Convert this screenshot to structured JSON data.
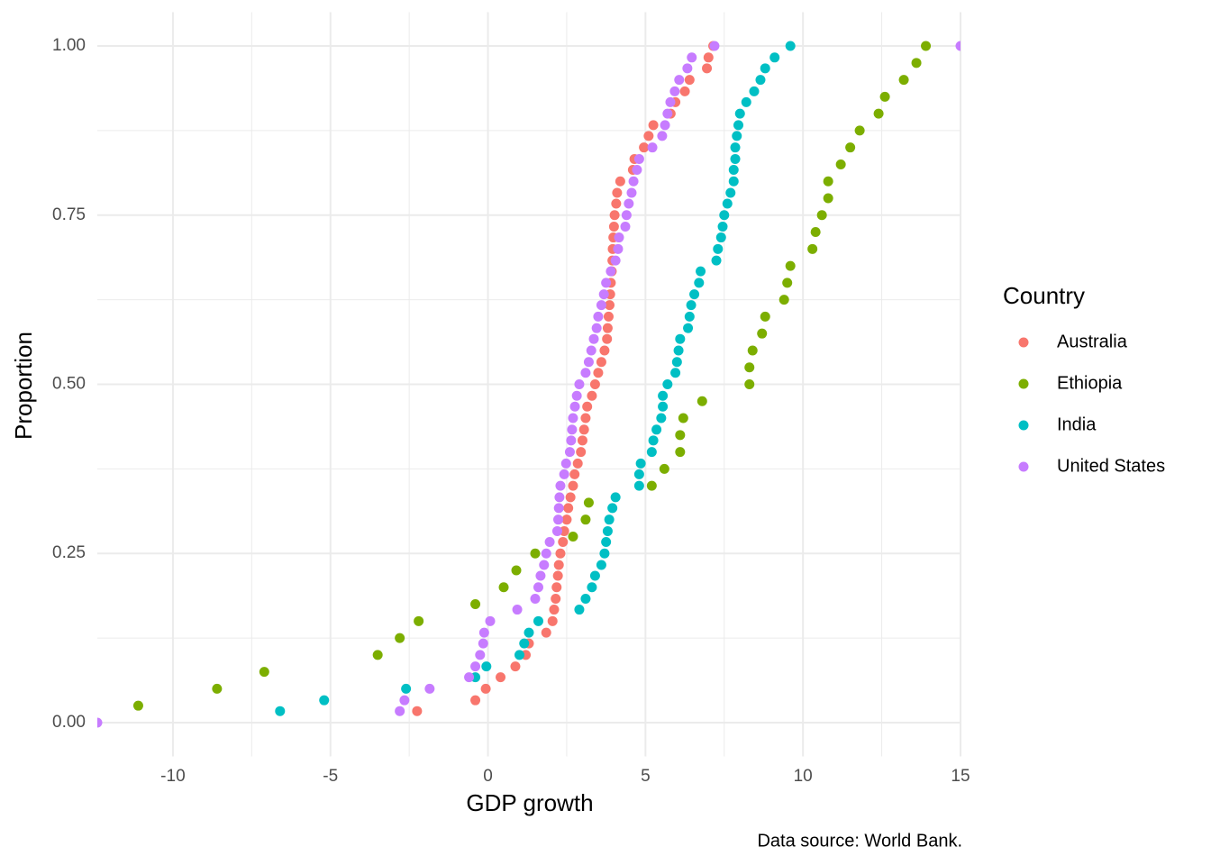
{
  "chart_data": {
    "type": "scatter",
    "x_label": "GDP growth",
    "y_label": "Proportion",
    "caption": "Data source: World Bank.",
    "legend_title": "Country",
    "legend_position": "right",
    "grid": true,
    "xlim": [
      -12.4,
      15
    ],
    "ylim": [
      -0.05,
      1.05
    ],
    "xticks": [
      -10,
      -5,
      0,
      5,
      10,
      15
    ],
    "xminorticks": [
      -7.5,
      -2.5,
      2.5,
      7.5,
      12.5
    ],
    "yticks": [
      {
        "value": 0,
        "label": "0.00"
      },
      {
        "value": 0.25,
        "label": "0.25"
      },
      {
        "value": 0.5,
        "label": "0.50"
      },
      {
        "value": 0.75,
        "label": "0.75"
      },
      {
        "value": 1,
        "label": "1.00"
      }
    ],
    "yminorticks": [
      0.125,
      0.375,
      0.625,
      0.875
    ],
    "series": [
      {
        "name": "Australia",
        "color": "#F8766D",
        "x": [
          -2.25,
          -0.4,
          -0.07,
          0.4,
          0.87,
          1.2,
          1.3,
          1.85,
          2.05,
          2.1,
          2.15,
          2.18,
          2.22,
          2.25,
          2.3,
          2.38,
          2.42,
          2.5,
          2.55,
          2.62,
          2.7,
          2.75,
          2.85,
          2.95,
          3.0,
          3.05,
          3.1,
          3.15,
          3.3,
          3.4,
          3.5,
          3.6,
          3.7,
          3.78,
          3.8,
          3.83,
          3.86,
          3.88,
          3.9,
          3.93,
          3.95,
          3.96,
          3.98,
          4.0,
          4.02,
          4.07,
          4.1,
          4.2,
          4.6,
          4.65,
          4.95,
          5.1,
          5.25,
          5.8,
          5.95,
          6.25,
          6.4,
          6.95,
          7.0,
          7.15
        ],
        "values": [
          0.017,
          0.033,
          0.05,
          0.067,
          0.083,
          0.1,
          0.117,
          0.133,
          0.15,
          0.167,
          0.183,
          0.2,
          0.217,
          0.233,
          0.25,
          0.267,
          0.283,
          0.3,
          0.317,
          0.333,
          0.35,
          0.367,
          0.383,
          0.4,
          0.417,
          0.433,
          0.45,
          0.467,
          0.483,
          0.5,
          0.517,
          0.533,
          0.55,
          0.567,
          0.583,
          0.6,
          0.617,
          0.633,
          0.65,
          0.667,
          0.683,
          0.7,
          0.717,
          0.733,
          0.75,
          0.767,
          0.783,
          0.8,
          0.817,
          0.833,
          0.85,
          0.867,
          0.883,
          0.9,
          0.917,
          0.933,
          0.95,
          0.967,
          0.983,
          1
        ]
      },
      {
        "name": "Ethiopia",
        "color": "#7CAE00",
        "x": [
          -11.1,
          -8.6,
          -7.1,
          -3.5,
          -2.8,
          -2.2,
          -0.4,
          0.5,
          0.9,
          1.5,
          2.7,
          3.1,
          3.2,
          5.2,
          5.6,
          6.1,
          6.1,
          6.2,
          6.8,
          8.3,
          8.3,
          8.4,
          8.7,
          8.8,
          9.4,
          9.5,
          9.6,
          10.3,
          10.4,
          10.6,
          10.8,
          10.8,
          11.2,
          11.5,
          11.8,
          12.4,
          12.6,
          13.2,
          13.6,
          13.9
        ],
        "values": [
          0.025,
          0.05,
          0.075,
          0.1,
          0.125,
          0.15,
          0.175,
          0.2,
          0.225,
          0.25,
          0.275,
          0.3,
          0.325,
          0.35,
          0.375,
          0.4,
          0.425,
          0.45,
          0.475,
          0.5,
          0.525,
          0.55,
          0.575,
          0.6,
          0.625,
          0.65,
          0.675,
          0.7,
          0.725,
          0.75,
          0.775,
          0.8,
          0.825,
          0.85,
          0.875,
          0.9,
          0.925,
          0.95,
          0.975,
          1
        ]
      },
      {
        "name": "India",
        "color": "#00BFC4",
        "x": [
          -6.6,
          -5.2,
          -2.6,
          -0.4,
          -0.05,
          1.0,
          1.15,
          1.3,
          1.6,
          2.9,
          3.1,
          3.3,
          3.4,
          3.6,
          3.7,
          3.75,
          3.8,
          3.85,
          3.95,
          4.05,
          4.8,
          4.8,
          4.85,
          5.2,
          5.25,
          5.35,
          5.5,
          5.55,
          5.55,
          5.7,
          5.95,
          6.0,
          6.05,
          6.1,
          6.35,
          6.4,
          6.45,
          6.55,
          6.7,
          6.75,
          7.25,
          7.3,
          7.4,
          7.45,
          7.5,
          7.6,
          7.7,
          7.8,
          7.8,
          7.85,
          7.85,
          7.9,
          7.95,
          8.0,
          8.2,
          8.45,
          8.65,
          8.8,
          9.1,
          9.6
        ],
        "values": [
          0.017,
          0.033,
          0.05,
          0.067,
          0.083,
          0.1,
          0.117,
          0.133,
          0.15,
          0.167,
          0.183,
          0.2,
          0.217,
          0.233,
          0.25,
          0.267,
          0.283,
          0.3,
          0.317,
          0.333,
          0.35,
          0.367,
          0.383,
          0.4,
          0.417,
          0.433,
          0.45,
          0.467,
          0.483,
          0.5,
          0.517,
          0.533,
          0.55,
          0.567,
          0.583,
          0.6,
          0.617,
          0.633,
          0.65,
          0.667,
          0.683,
          0.7,
          0.717,
          0.733,
          0.75,
          0.767,
          0.783,
          0.8,
          0.817,
          0.833,
          0.85,
          0.867,
          0.883,
          0.9,
          0.917,
          0.933,
          0.95,
          0.967,
          0.983,
          1
        ]
      },
      {
        "name": "United States",
        "color": "#C77CFF",
        "x": [
          -12.4,
          -2.8,
          -2.65,
          -1.85,
          -0.6,
          -0.4,
          -0.25,
          -0.15,
          -0.12,
          0.07,
          0.93,
          1.5,
          1.6,
          1.67,
          1.78,
          1.85,
          1.96,
          2.2,
          2.23,
          2.25,
          2.27,
          2.3,
          2.42,
          2.48,
          2.6,
          2.64,
          2.67,
          2.7,
          2.76,
          2.82,
          2.9,
          3.1,
          3.2,
          3.28,
          3.36,
          3.45,
          3.5,
          3.6,
          3.68,
          3.75,
          3.9,
          4.05,
          4.13,
          4.16,
          4.36,
          4.4,
          4.47,
          4.56,
          4.62,
          4.73,
          4.8,
          5.22,
          5.53,
          5.62,
          5.7,
          5.79,
          5.93,
          6.07,
          6.33,
          6.47,
          7.19,
          15
        ],
        "values": [
          0,
          0.017,
          0.033,
          0.05,
          0.067,
          0.083,
          0.1,
          0.117,
          0.133,
          0.15,
          0.167,
          0.183,
          0.2,
          0.217,
          0.233,
          0.25,
          0.267,
          0.283,
          0.3,
          0.317,
          0.333,
          0.35,
          0.367,
          0.383,
          0.4,
          0.417,
          0.433,
          0.45,
          0.467,
          0.483,
          0.5,
          0.517,
          0.533,
          0.55,
          0.567,
          0.583,
          0.6,
          0.617,
          0.633,
          0.65,
          0.667,
          0.683,
          0.7,
          0.717,
          0.733,
          0.75,
          0.767,
          0.783,
          0.8,
          0.817,
          0.833,
          0.85,
          0.867,
          0.883,
          0.9,
          0.917,
          0.933,
          0.95,
          0.967,
          0.983,
          1,
          1
        ]
      }
    ]
  }
}
